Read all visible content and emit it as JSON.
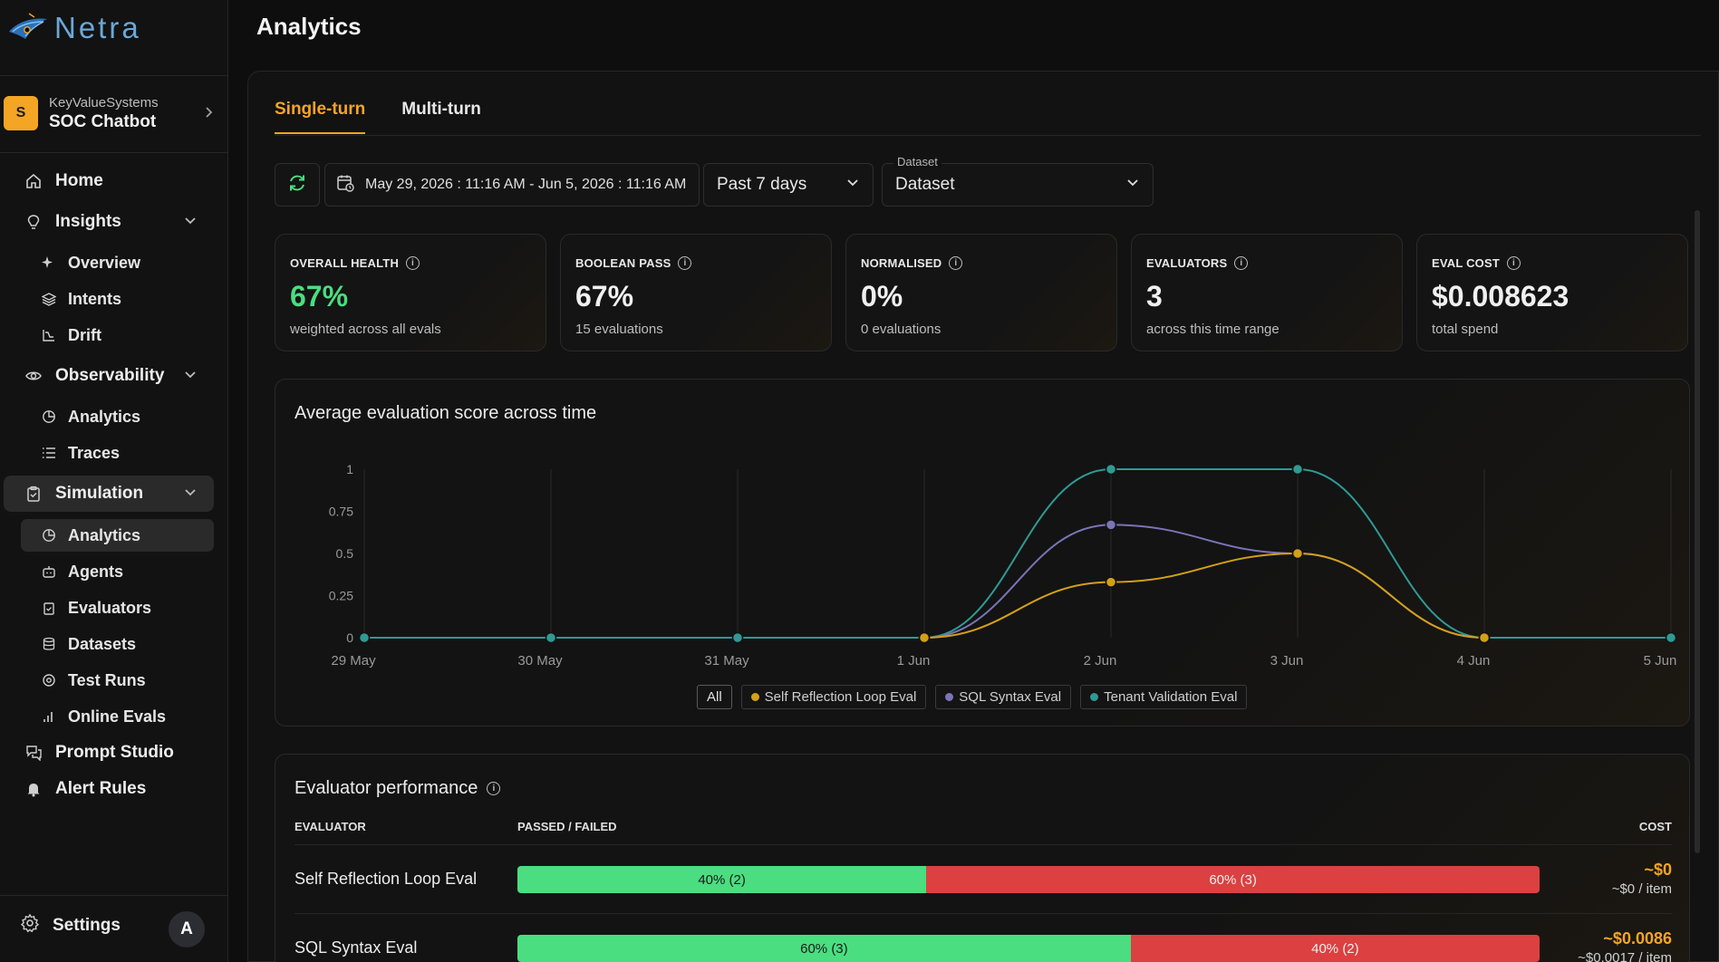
{
  "app": {
    "name": "Netra"
  },
  "org": {
    "initial": "S",
    "name": "KeyValueSystems",
    "project": "SOC Chatbot"
  },
  "nav": {
    "home": "Home",
    "insights": "Insights",
    "overview": "Overview",
    "intents": "Intents",
    "drift": "Drift",
    "observability": "Observability",
    "obs_analytics": "Analytics",
    "traces": "Traces",
    "simulation": "Simulation",
    "sim_analytics": "Analytics",
    "agents": "Agents",
    "evaluators": "Evaluators",
    "datasets": "Datasets",
    "test_runs": "Test Runs",
    "online_evals": "Online Evals",
    "prompt_studio": "Prompt Studio",
    "alert_rules": "Alert Rules",
    "settings": "Settings",
    "user_initial": "A"
  },
  "page": {
    "title": "Analytics"
  },
  "tabs": {
    "single": "Single-turn",
    "multi": "Multi-turn"
  },
  "filters": {
    "date_range": "May 29, 2026 : 11:16 AM - Jun 5, 2026 : 11:16 AM",
    "preset": "Past 7 days",
    "dataset_label": "Dataset",
    "dataset_value": "Dataset"
  },
  "kpis": [
    {
      "label": "OVERALL HEALTH",
      "value": "67%",
      "sub": "weighted across all evals"
    },
    {
      "label": "BOOLEAN PASS",
      "value": "67%",
      "sub": "15 evaluations"
    },
    {
      "label": "NORMALISED",
      "value": "0%",
      "sub": "0 evaluations"
    },
    {
      "label": "EVALUATORS",
      "value": "3",
      "sub": "across this time range"
    },
    {
      "label": "EVAL COST",
      "value": "$0.008623",
      "sub": "total spend"
    }
  ],
  "colors": {
    "accent": "#f5a524",
    "pass": "#4ade80",
    "fail": "#dc4040"
  },
  "chart_data": {
    "type": "line",
    "title": "Average evaluation score across time",
    "categories": [
      "29 May",
      "30 May",
      "31 May",
      "1 Jun",
      "2 Jun",
      "3 Jun",
      "4 Jun",
      "5 Jun"
    ],
    "yticks": [
      "0",
      "0.25",
      "0.5",
      "0.75",
      "1"
    ],
    "ylim": [
      0,
      1
    ],
    "grid": "vertical",
    "legend_all": "All",
    "series": [
      {
        "name": "Self Reflection Loop Eval",
        "color": "#d4a017",
        "points": [
          [
            3,
            0
          ],
          [
            4,
            0.33
          ],
          [
            5,
            0.5
          ],
          [
            6,
            0
          ]
        ]
      },
      {
        "name": "SQL Syntax Eval",
        "color": "#7b74b8",
        "points": [
          [
            3,
            0
          ],
          [
            4,
            0.67
          ],
          [
            5,
            0.5
          ],
          [
            6,
            0
          ]
        ]
      },
      {
        "name": "Tenant Validation Eval",
        "color": "#2f9a94",
        "points": [
          [
            0,
            0
          ],
          [
            1,
            0
          ],
          [
            2,
            0
          ],
          [
            3,
            0
          ],
          [
            4,
            1
          ],
          [
            5,
            1
          ],
          [
            6,
            0
          ],
          [
            7,
            0
          ]
        ]
      }
    ]
  },
  "performance": {
    "title": "Evaluator performance",
    "headers": {
      "evaluator": "EVALUATOR",
      "passed_failed": "PASSED / FAILED",
      "cost": "COST"
    },
    "rows": [
      {
        "name": "Self Reflection Loop Eval",
        "pass_pct": 40,
        "pass_label": "40% (2)",
        "fail_label": "60% (3)",
        "cost": "~$0",
        "per_item": "~$0 / item"
      },
      {
        "name": "SQL Syntax Eval",
        "pass_pct": 60,
        "pass_label": "60% (3)",
        "fail_label": "40% (2)",
        "cost": "~$0.0086",
        "per_item": "~$0.0017 / item"
      }
    ]
  }
}
